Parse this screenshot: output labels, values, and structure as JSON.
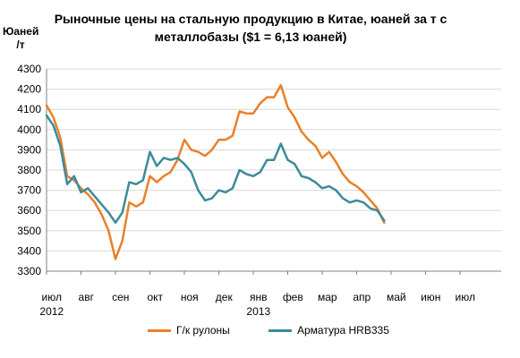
{
  "chart_data": {
    "type": "line",
    "title": "Рыночные цены на стальную продукцию в Китае, юаней за т с металлобазы ($1 = 6,13 юаней)",
    "ylabel": "Юаней /т",
    "ylim": [
      3300,
      4300
    ],
    "yticks": [
      "3300",
      "3400",
      "3500",
      "3600",
      "3700",
      "3800",
      "3900",
      "4000",
      "4100",
      "4200",
      "4300"
    ],
    "xticks": [
      {
        "label": "июл",
        "sub": "2012",
        "m": 0
      },
      {
        "label": "авг",
        "sub": "",
        "m": 1
      },
      {
        "label": "сен",
        "sub": "",
        "m": 2
      },
      {
        "label": "окт",
        "sub": "",
        "m": 3
      },
      {
        "label": "ноя",
        "sub": "",
        "m": 4
      },
      {
        "label": "дек",
        "sub": "",
        "m": 5
      },
      {
        "label": "янв",
        "sub": "2013",
        "m": 6
      },
      {
        "label": "фев",
        "sub": "",
        "m": 7
      },
      {
        "label": "мар",
        "sub": "",
        "m": 8
      },
      {
        "label": "апр",
        "sub": "",
        "m": 9
      },
      {
        "label": "май",
        "sub": "",
        "m": 10
      },
      {
        "label": "июн",
        "sub": "",
        "m": 11
      },
      {
        "label": "июл",
        "sub": "",
        "m": 12
      }
    ],
    "grid": "horizontal",
    "legend_position": "bottom",
    "series": [
      {
        "name": "Г/к рулоны",
        "color": "#e8802a",
        "points": [
          [
            0,
            4120
          ],
          [
            0.2,
            4060
          ],
          [
            0.4,
            3960
          ],
          [
            0.6,
            3770
          ],
          [
            0.8,
            3750
          ],
          [
            1.0,
            3710
          ],
          [
            1.2,
            3680
          ],
          [
            1.4,
            3640
          ],
          [
            1.6,
            3580
          ],
          [
            1.8,
            3500
          ],
          [
            2.0,
            3360
          ],
          [
            2.2,
            3450
          ],
          [
            2.4,
            3640
          ],
          [
            2.6,
            3620
          ],
          [
            2.8,
            3640
          ],
          [
            3.0,
            3770
          ],
          [
            3.2,
            3740
          ],
          [
            3.4,
            3770
          ],
          [
            3.6,
            3790
          ],
          [
            3.8,
            3850
          ],
          [
            4.0,
            3950
          ],
          [
            4.2,
            3900
          ],
          [
            4.4,
            3890
          ],
          [
            4.6,
            3870
          ],
          [
            4.8,
            3900
          ],
          [
            5.0,
            3950
          ],
          [
            5.2,
            3950
          ],
          [
            5.4,
            3970
          ],
          [
            5.6,
            4090
          ],
          [
            5.8,
            4080
          ],
          [
            6.0,
            4080
          ],
          [
            6.2,
            4130
          ],
          [
            6.4,
            4160
          ],
          [
            6.6,
            4160
          ],
          [
            6.8,
            4220
          ],
          [
            7.0,
            4110
          ],
          [
            7.2,
            4060
          ],
          [
            7.4,
            3990
          ],
          [
            7.6,
            3950
          ],
          [
            7.8,
            3920
          ],
          [
            8.0,
            3860
          ],
          [
            8.2,
            3890
          ],
          [
            8.4,
            3840
          ],
          [
            8.6,
            3780
          ],
          [
            8.8,
            3740
          ],
          [
            9.0,
            3720
          ],
          [
            9.2,
            3690
          ],
          [
            9.4,
            3650
          ],
          [
            9.6,
            3610
          ],
          [
            9.8,
            3540
          ]
        ]
      },
      {
        "name": "Арматура HRB335",
        "color": "#3d8a9a",
        "points": [
          [
            0,
            4070
          ],
          [
            0.2,
            4020
          ],
          [
            0.4,
            3920
          ],
          [
            0.6,
            3730
          ],
          [
            0.8,
            3770
          ],
          [
            1.0,
            3690
          ],
          [
            1.2,
            3710
          ],
          [
            1.4,
            3670
          ],
          [
            1.6,
            3630
          ],
          [
            1.8,
            3590
          ],
          [
            2.0,
            3540
          ],
          [
            2.2,
            3590
          ],
          [
            2.4,
            3740
          ],
          [
            2.6,
            3730
          ],
          [
            2.8,
            3750
          ],
          [
            3.0,
            3890
          ],
          [
            3.2,
            3820
          ],
          [
            3.4,
            3860
          ],
          [
            3.6,
            3850
          ],
          [
            3.8,
            3860
          ],
          [
            4.0,
            3830
          ],
          [
            4.2,
            3790
          ],
          [
            4.4,
            3700
          ],
          [
            4.6,
            3650
          ],
          [
            4.8,
            3660
          ],
          [
            5.0,
            3700
          ],
          [
            5.2,
            3690
          ],
          [
            5.4,
            3710
          ],
          [
            5.6,
            3800
          ],
          [
            5.8,
            3780
          ],
          [
            6.0,
            3770
          ],
          [
            6.2,
            3790
          ],
          [
            6.4,
            3850
          ],
          [
            6.6,
            3850
          ],
          [
            6.8,
            3930
          ],
          [
            7.0,
            3850
          ],
          [
            7.2,
            3830
          ],
          [
            7.4,
            3770
          ],
          [
            7.6,
            3760
          ],
          [
            7.8,
            3740
          ],
          [
            8.0,
            3710
          ],
          [
            8.2,
            3720
          ],
          [
            8.4,
            3700
          ],
          [
            8.6,
            3660
          ],
          [
            8.8,
            3640
          ],
          [
            9.0,
            3650
          ],
          [
            9.2,
            3640
          ],
          [
            9.4,
            3610
          ],
          [
            9.6,
            3600
          ],
          [
            9.8,
            3550
          ]
        ]
      }
    ]
  }
}
